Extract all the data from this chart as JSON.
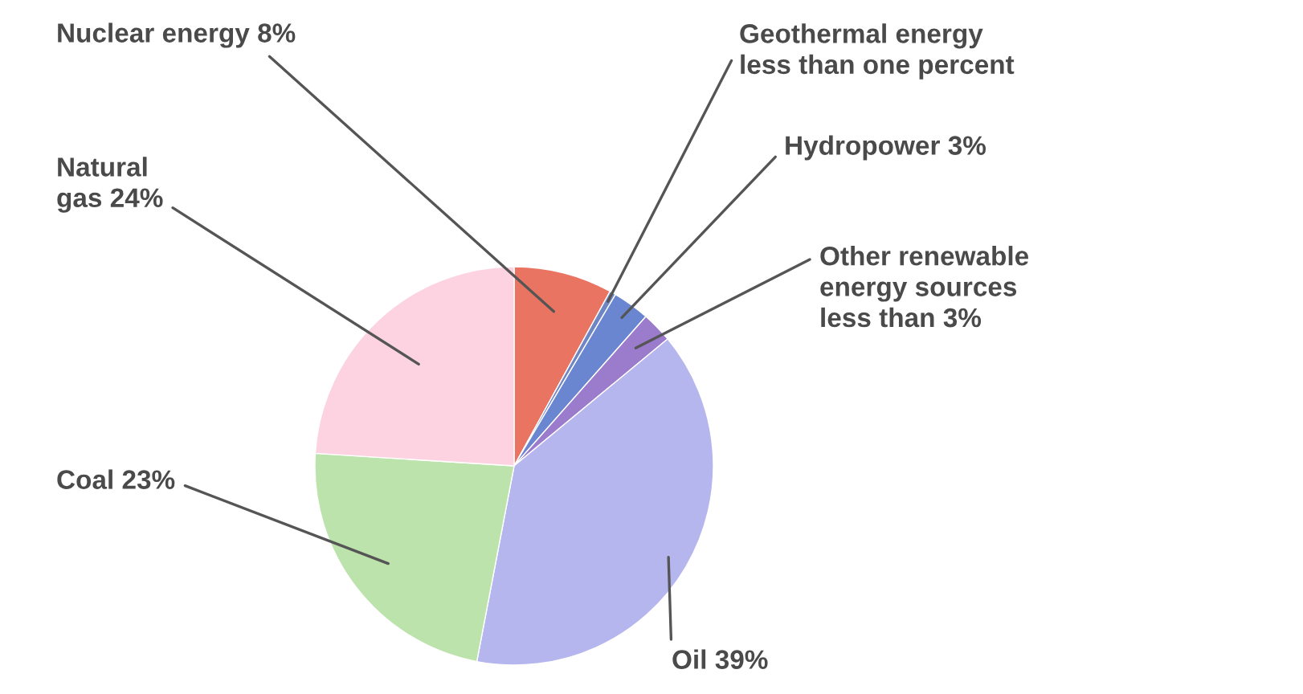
{
  "chart_data": {
    "type": "pie",
    "categories": [
      "Nuclear energy 8%",
      "Geothermal energy\nless than one percent",
      "Hydropower 3%",
      "Other renewable\nenergy sources\nless than 3%",
      "Oil 39%",
      "Coal 23%",
      "Natural\ngas 24%"
    ],
    "values": [
      8,
      0.5,
      3,
      2.5,
      39,
      23,
      24
    ],
    "colors": [
      "#ea7462",
      "#6f86c4",
      "#6a86d0",
      "#9b7ccc",
      "#b6b6ee",
      "#bde3ad",
      "#fdd3e2"
    ]
  }
}
